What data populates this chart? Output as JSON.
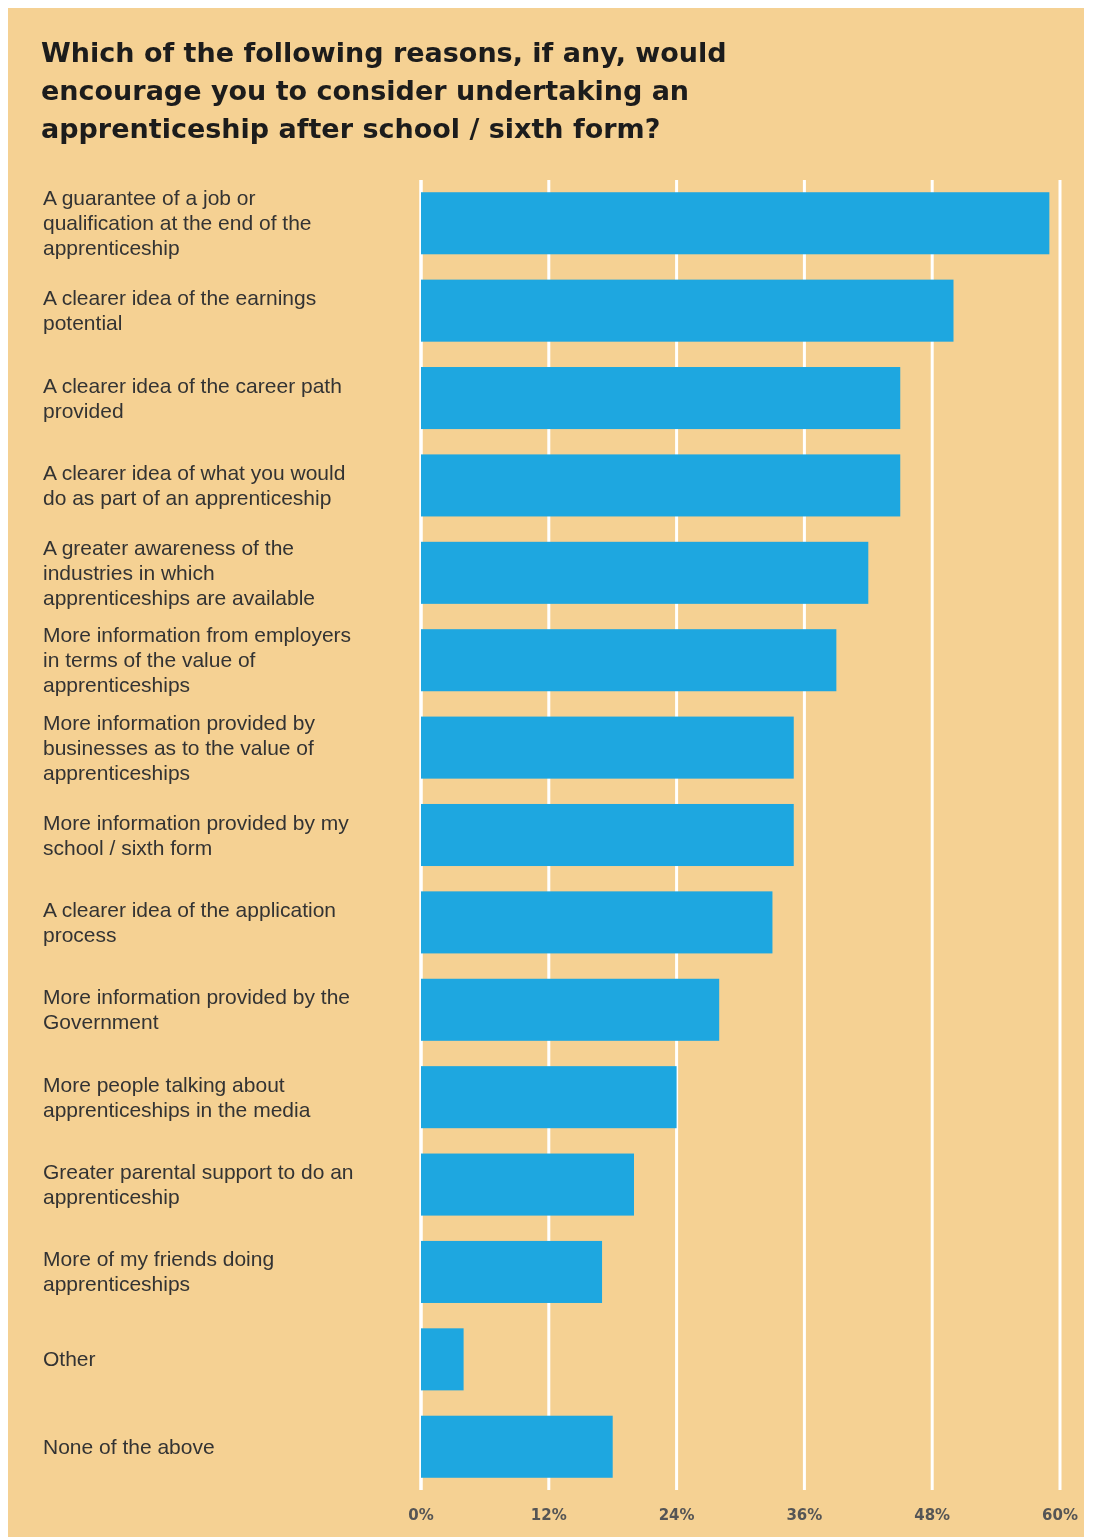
{
  "chart_data": {
    "type": "bar",
    "orientation": "horizontal",
    "title": "Which of the following reasons, if any, would encourage you to consider undertaking an apprenticeship after school / sixth form?",
    "categories": [
      "A guarantee of a job or qualification at the end of the apprenticeship",
      "A clearer idea of the earnings potential",
      "A clearer idea of the career path provided",
      "A clearer idea of what you would do as part of an apprenticeship",
      "A greater awareness of the industries in which apprenticeships are available",
      "More information from employers in terms of the value of apprenticeships",
      "More information provided by businesses as to the value of apprenticeships",
      "More information provided by my school / sixth form",
      "A clearer idea of the application process",
      "More information provided by the Government",
      "More people talking about apprenticeships in the media",
      "Greater parental support to do an apprenticeship",
      "More of my friends doing apprenticeships",
      "Other",
      "None of the above"
    ],
    "values": [
      59,
      50,
      45,
      45,
      42,
      39,
      35,
      35,
      33,
      28,
      24,
      20,
      17,
      4,
      18
    ],
    "color": "#1ea7e0",
    "xlim": [
      0,
      60
    ],
    "xticks": [
      {
        "value": 0,
        "label": "0%"
      },
      {
        "value": 12,
        "label": "12%"
      },
      {
        "value": 24,
        "label": "24%"
      },
      {
        "value": 36,
        "label": "36%"
      },
      {
        "value": 48,
        "label": "48%"
      },
      {
        "value": 60,
        "label": "60%"
      }
    ],
    "grid": "x"
  }
}
